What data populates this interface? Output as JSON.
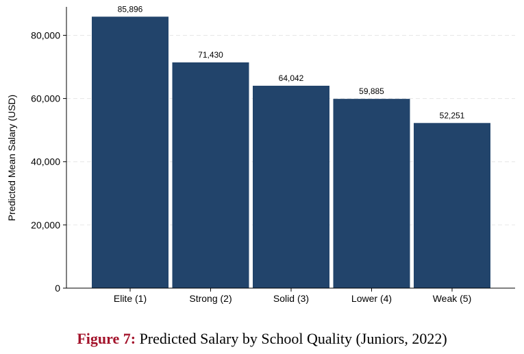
{
  "caption": {
    "prefix": "Figure 7:",
    "text": "Predicted Salary by School Quality (Juniors, 2022)"
  },
  "colors": {
    "bar": "#22446b",
    "caption_prefix": "#a3122a",
    "grid": "#e6e6e6"
  },
  "chart_data": {
    "type": "bar",
    "title": "",
    "xlabel": "",
    "ylabel": "Predicted Mean Salary (USD)",
    "categories": [
      "Elite (1)",
      "Strong (2)",
      "Solid (3)",
      "Lower (4)",
      "Weak (5)"
    ],
    "values": [
      85896,
      71430,
      64042,
      59885,
      52251
    ],
    "value_labels": [
      "85,896",
      "71,430",
      "64,042",
      "59,885",
      "52,251"
    ],
    "yticks": [
      0,
      20000,
      40000,
      60000,
      80000
    ],
    "ytick_labels": [
      "0",
      "20,000",
      "40,000",
      "60,000",
      "80,000"
    ],
    "ylim": [
      0,
      89000
    ],
    "grid": true
  }
}
